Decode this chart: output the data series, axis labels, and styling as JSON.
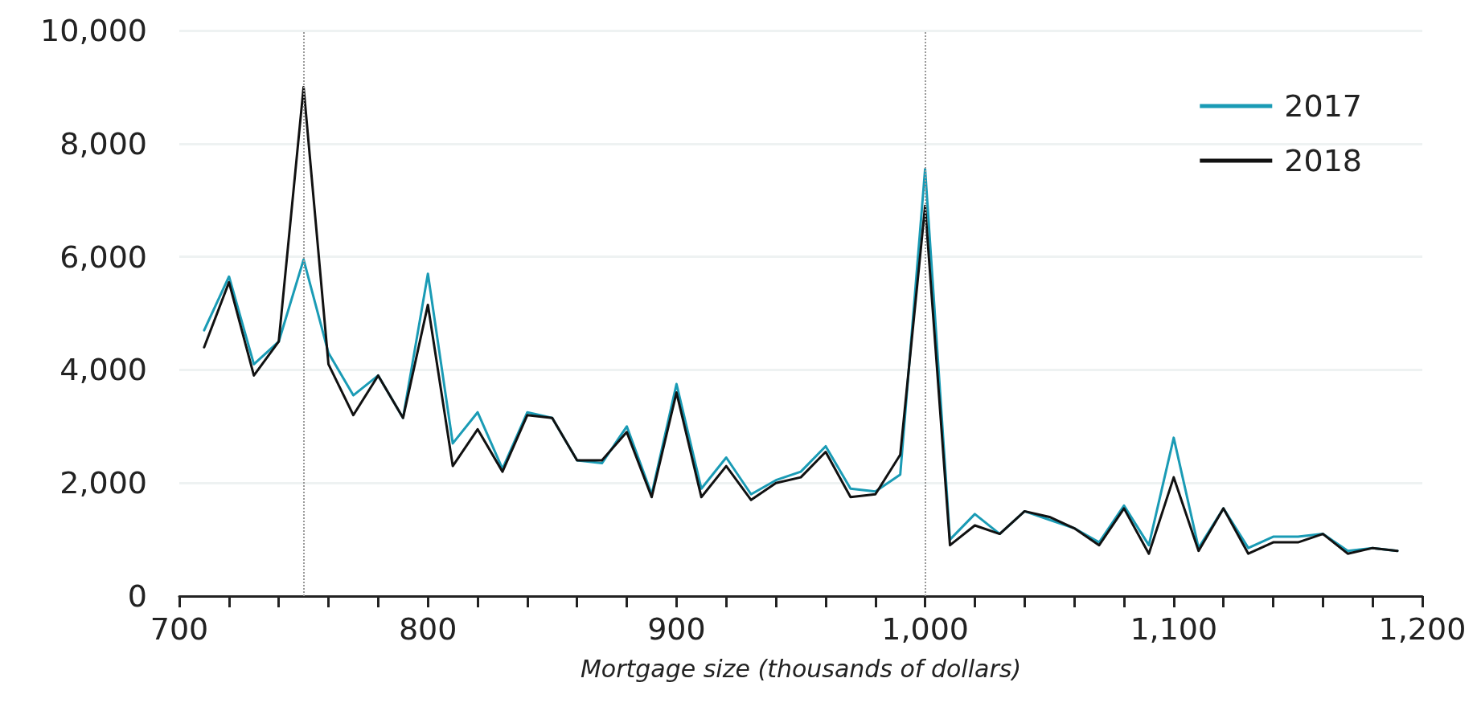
{
  "chart_data": {
    "type": "line",
    "xlabel": "Mortgage size (thousands of dollars)",
    "x": [
      710,
      720,
      730,
      740,
      750,
      760,
      770,
      780,
      790,
      800,
      810,
      820,
      830,
      840,
      850,
      860,
      870,
      880,
      890,
      900,
      910,
      920,
      930,
      940,
      950,
      960,
      970,
      980,
      990,
      1000,
      1010,
      1020,
      1030,
      1040,
      1050,
      1060,
      1070,
      1080,
      1090,
      1100,
      1110,
      1120,
      1130,
      1140,
      1150,
      1160,
      1170,
      1180,
      1190
    ],
    "series": [
      {
        "name": "2017",
        "color": "#1a9bb5",
        "values": [
          4700,
          5650,
          4100,
          4500,
          5950,
          4300,
          3550,
          3900,
          3150,
          5700,
          2700,
          3250,
          2250,
          3250,
          3150,
          2400,
          2350,
          3000,
          1800,
          3750,
          1900,
          2450,
          1800,
          2050,
          2200,
          2650,
          1900,
          1850,
          2150,
          7550,
          1000,
          1450,
          1100,
          1500,
          1350,
          1200,
          950,
          1600,
          900,
          2800,
          850,
          1550,
          850,
          1050,
          1050,
          1100,
          800,
          850,
          800
        ]
      },
      {
        "name": "2018",
        "color": "#111111",
        "values": [
          4400,
          5550,
          3900,
          4500,
          9000,
          4100,
          3200,
          3900,
          3150,
          5150,
          2300,
          2950,
          2200,
          3200,
          3150,
          2400,
          2400,
          2900,
          1750,
          3600,
          1750,
          2300,
          1700,
          2000,
          2100,
          2550,
          1750,
          1800,
          2500,
          6900,
          900,
          1250,
          1100,
          1500,
          1400,
          1200,
          900,
          1550,
          750,
          2100,
          800,
          1550,
          750,
          950,
          950,
          1100,
          750,
          850,
          800
        ]
      }
    ],
    "xlim": [
      700,
      1200
    ],
    "xticks": [
      700,
      {
        "value": 720,
        "label": null
      },
      {
        "value": 740,
        "label": null
      },
      {
        "value": 760,
        "label": null
      },
      {
        "value": 780,
        "label": null
      },
      800,
      {
        "value": 820,
        "label": null
      },
      {
        "value": 840,
        "label": null
      },
      {
        "value": 860,
        "label": null
      },
      {
        "value": 880,
        "label": null
      },
      900,
      {
        "value": 920,
        "label": null
      },
      {
        "value": 940,
        "label": null
      },
      {
        "value": 960,
        "label": null
      },
      {
        "value": 980,
        "label": null
      },
      {
        "value": 1000,
        "label": "1,000"
      },
      {
        "value": 1020,
        "label": null
      },
      {
        "value": 1040,
        "label": null
      },
      {
        "value": 1060,
        "label": null
      },
      {
        "value": 1080,
        "label": null
      },
      {
        "value": 1100,
        "label": "1,100"
      },
      {
        "value": 1120,
        "label": null
      },
      {
        "value": 1140,
        "label": null
      },
      {
        "value": 1160,
        "label": null
      },
      {
        "value": 1180,
        "label": null
      },
      {
        "value": 1200,
        "label": "1,200"
      }
    ],
    "ylim": [
      0,
      10000
    ],
    "yticks": [
      0,
      {
        "value": 2000,
        "label": "2,000"
      },
      {
        "value": 4000,
        "label": "4,000"
      },
      {
        "value": 6000,
        "label": "6,000"
      },
      {
        "value": 8000,
        "label": "8,000"
      },
      {
        "value": 10000,
        "label": "10,000"
      }
    ],
    "ref_lines": [
      {
        "axis": "x",
        "value": 750,
        "color": "#999999",
        "line_style": "dotted"
      },
      {
        "axis": "x",
        "value": 1000,
        "color": "#999999",
        "line_style": "dotted"
      }
    ],
    "grid": "y",
    "legend": "top right",
    "marker": "none",
    "line_style": "solid"
  }
}
